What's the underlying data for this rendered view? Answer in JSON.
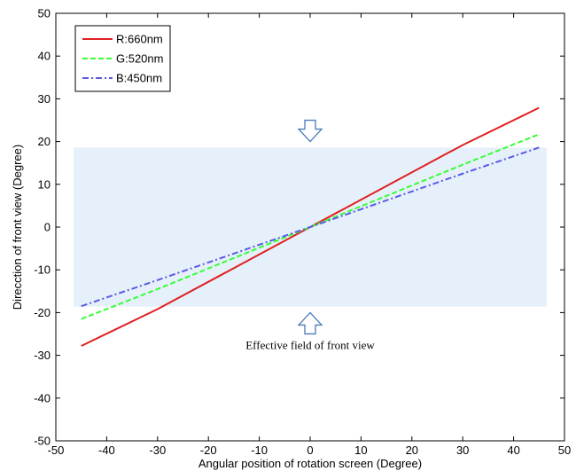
{
  "chart_data": {
    "type": "line",
    "xlabel": "Angular position of rotation screen (Degree)",
    "ylabel": "Direcction of front view (Degree)",
    "xlim": [
      -50,
      50
    ],
    "ylim": [
      -50,
      50
    ],
    "xticks": [
      -50,
      -40,
      -30,
      -20,
      -10,
      0,
      10,
      20,
      30,
      40,
      50
    ],
    "yticks": [
      -50,
      -40,
      -30,
      -20,
      -10,
      0,
      10,
      20,
      30,
      40,
      50
    ],
    "grid": false,
    "legend_position": "top-left",
    "series": [
      {
        "name": "R:660nm",
        "color": "#e02020",
        "dash": "solid",
        "x": [
          -45,
          -30,
          0,
          30,
          45
        ],
        "y": [
          -27.8,
          -19.2,
          0,
          19.2,
          27.9
        ]
      },
      {
        "name": "G:520nm",
        "color": "#33ff33",
        "dash": "dashed",
        "x": [
          -45,
          -30,
          0,
          30,
          45
        ],
        "y": [
          -21.5,
          -14.5,
          0,
          14.6,
          21.7
        ]
      },
      {
        "name": "B:450nm",
        "color": "#5a5ae6",
        "dash": "dashdot",
        "x": [
          -45,
          -30,
          0,
          30,
          45
        ],
        "y": [
          -18.5,
          -12.4,
          0,
          12.5,
          18.6
        ]
      }
    ],
    "highlight_band": {
      "y_range": [
        -18.6,
        18.6
      ],
      "x_range": [
        -46.5,
        46.5
      ],
      "color": "#e6f0fa"
    },
    "annotations": [
      {
        "text": "Effective field of front view",
        "x": 0,
        "y": -28.5
      },
      {
        "type": "arrow-down",
        "x": 0,
        "y": 22.5,
        "icon": "down-arrow-icon"
      },
      {
        "type": "arrow-up",
        "x": 0,
        "y": -22.5,
        "icon": "up-arrow-icon"
      }
    ]
  }
}
